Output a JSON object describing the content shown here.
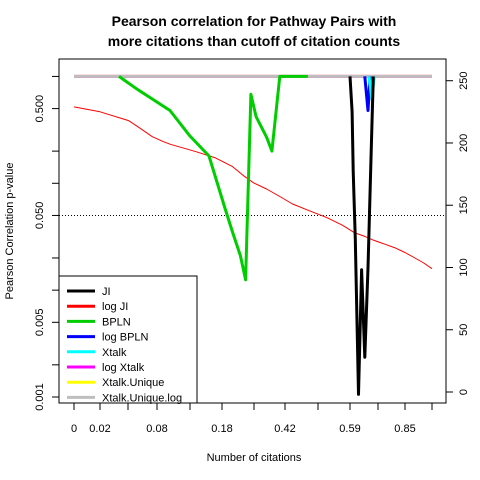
{
  "chart_data": {
    "type": "line",
    "title_lines": [
      "Pearson correlation for Pathway Pairs with",
      "more citations than cutoff of citation counts"
    ],
    "xlabel": "Number of citations",
    "ylabel": "Pearson Correlation p-value",
    "x_ticks": [
      "0",
      "0.02",
      "0.08",
      "0.18",
      "0.42",
      "0.59",
      "0.85"
    ],
    "x_tick_values": [
      0,
      0.02,
      0.08,
      0.18,
      0.42,
      0.59,
      0.85
    ],
    "y_left": {
      "scale": "log",
      "ticks": [
        "0.001",
        "0.005",
        "0.050",
        "0.500"
      ],
      "tick_values": [
        0.001,
        0.005,
        0.05,
        0.5
      ],
      "range": [
        0.001,
        1.1
      ]
    },
    "y_right": {
      "scale": "linear",
      "ticks": [
        "0",
        "50",
        "100",
        "150",
        "200",
        "250"
      ],
      "tick_values": [
        0,
        50,
        100,
        150,
        200,
        250
      ],
      "range": [
        0,
        257
      ]
    },
    "reference_line": {
      "y": 0.05,
      "style": "dotted"
    },
    "legend": {
      "position": "bottom-left",
      "entries": [
        {
          "name": "JI",
          "color": "#000000"
        },
        {
          "name": "log JI",
          "color": "#ff0000"
        },
        {
          "name": "BPLN",
          "color": "#00cd00"
        },
        {
          "name": "log BPLN",
          "color": "#0000ff"
        },
        {
          "name": "Xtalk",
          "color": "#00ffff"
        },
        {
          "name": "log Xtalk",
          "color": "#ff00ff"
        },
        {
          "name": "Xtalk.Unique",
          "color": "#ffff00"
        },
        {
          "name": "Xtalk.Unique.log",
          "color": "#bebebe"
        }
      ]
    },
    "series": [
      {
        "name": "JI",
        "axis": "left",
        "x": [
          0.59,
          0.6,
          0.605,
          0.615,
          0.63,
          0.645,
          0.66,
          0.675,
          0.69,
          0.7
        ],
        "y": [
          1.0,
          0.47,
          0.13,
          0.03,
          0.00106,
          0.0155,
          0.00236,
          0.0162,
          0.2,
          1.0
        ]
      },
      {
        "name": "log JI",
        "axis": "right",
        "x": [
          0,
          0.02,
          0.05,
          0.06,
          0.075,
          0.09,
          0.1,
          0.14,
          0.17,
          0.22,
          0.26,
          0.3,
          0.35,
          0.4,
          0.44,
          0.48,
          0.53,
          0.57,
          0.61,
          0.66,
          0.7,
          0.75,
          0.8,
          0.85,
          0.9,
          0.95,
          1.0
        ],
        "y": [
          229,
          225,
          218,
          213,
          205,
          201,
          199,
          193,
          188,
          181,
          174,
          168,
          163,
          157,
          151,
          146,
          140,
          134,
          128,
          125,
          122,
          119,
          116,
          112,
          108,
          104,
          99
        ]
      },
      {
        "name": "BPLN",
        "axis": "left",
        "x": [
          0.04,
          0.06,
          0.1,
          0.13,
          0.16,
          0.19,
          0.22,
          0.25,
          0.27,
          0.29,
          0.31,
          0.35,
          0.37,
          0.4,
          0.44,
          0.48
        ],
        "y": [
          1.0,
          0.75,
          0.48,
          0.28,
          0.18,
          0.06,
          0.035,
          0.021,
          0.0125,
          0.68,
          0.42,
          0.27,
          0.2,
          1.0,
          1.0,
          1.0
        ]
      },
      {
        "name": "log BPLN",
        "axis": "left",
        "x": [
          0.66,
          0.675,
          0.685
        ],
        "y": [
          1.0,
          0.48,
          1.0
        ]
      },
      {
        "name": "Xtalk",
        "axis": "left",
        "x": [
          0.68,
          0.693,
          0.705
        ],
        "y": [
          1.0,
          0.62,
          1.0
        ]
      },
      {
        "name": "log Xtalk",
        "axis": "left",
        "x": [
          0.0,
          1.0
        ],
        "y": [
          1.0,
          1.0
        ]
      },
      {
        "name": "Xtalk.Unique",
        "axis": "left",
        "x": [
          0.0,
          1.0
        ],
        "y": [
          1.0,
          1.0
        ]
      },
      {
        "name": "Xtalk.Unique.log",
        "axis": "left",
        "x": [
          0.0,
          1.0
        ],
        "y": [
          1.0,
          1.0
        ]
      }
    ],
    "grid": false
  }
}
